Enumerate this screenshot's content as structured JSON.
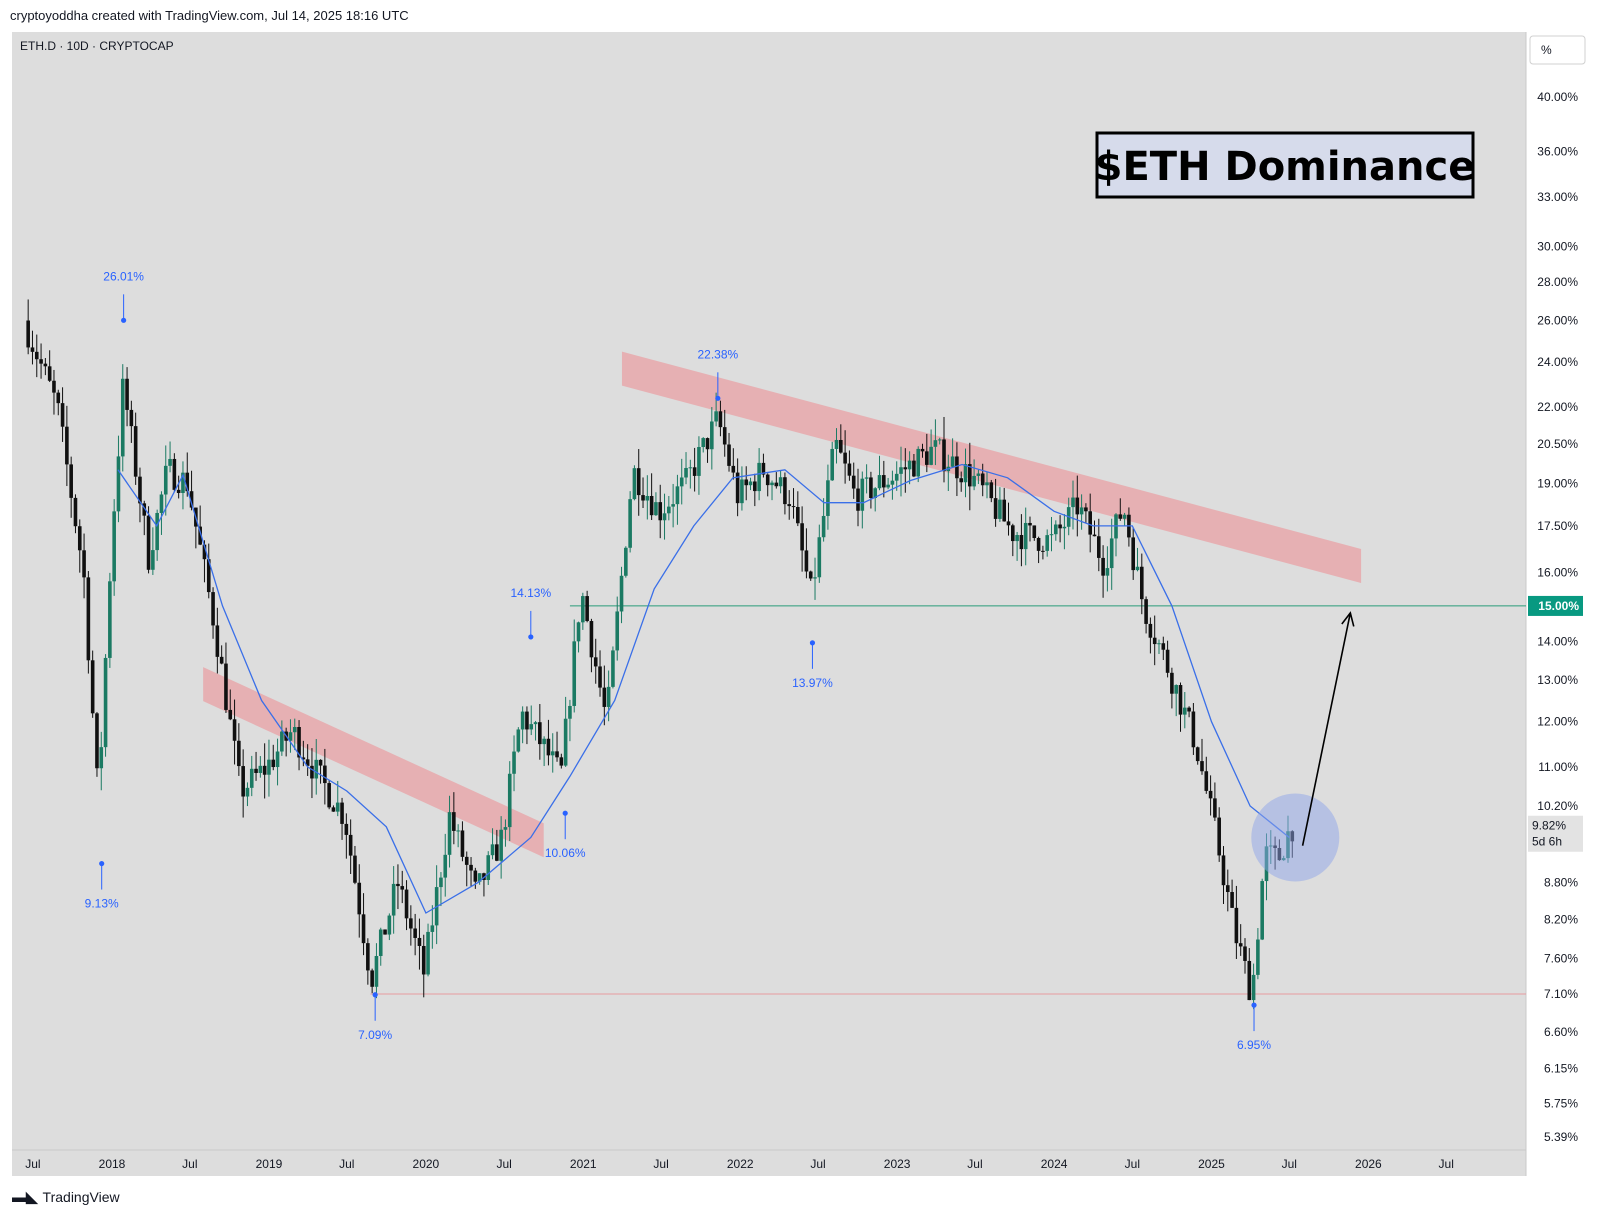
{
  "header": {
    "attribution": "cryptoyoddha created with TradingView.com, Jul 14, 2025 18:16 UTC"
  },
  "symbol_label": "ETH.D · 10D · CRYPTOCAP",
  "scale_button": "%",
  "footer": {
    "brand": "TradingView"
  },
  "colors": {
    "background": "#dddddd",
    "up_candle": "#1b7a63",
    "down_candle": "#101010",
    "ma_line": "#3a6fe8",
    "resistance_band": "#e8a8ac",
    "level_line_green": "#2a9d78",
    "level_line_red": "#e79aa0",
    "price_tag": "#089981",
    "annotation_text": "#2962ff"
  },
  "chart_data": {
    "type": "candlestick",
    "title": "$ETH Dominance",
    "symbol": "ETH.D",
    "interval": "10D",
    "exchange": "CRYPTOCAP",
    "y_scale": "log",
    "ylim": [
      5.25,
      43.5
    ],
    "y_ticks": [
      "40.00%",
      "36.00%",
      "33.00%",
      "30.00%",
      "28.00%",
      "26.00%",
      "24.00%",
      "22.00%",
      "20.50%",
      "19.00%",
      "17.50%",
      "16.00%",
      "14.00%",
      "13.00%",
      "12.00%",
      "11.00%",
      "10.20%",
      "8.80%",
      "8.20%",
      "7.60%",
      "7.10%",
      "6.60%",
      "6.15%",
      "5.75%",
      "5.39%"
    ],
    "x_ticks": [
      "Jul",
      "2018",
      "Jul",
      "2019",
      "Jul",
      "2020",
      "Jul",
      "2021",
      "Jul",
      "2022",
      "Jul",
      "2023",
      "Jul",
      "2024",
      "Jul",
      "2025",
      "Jul",
      "2026",
      "Jul"
    ],
    "last_price_label": "9.82%",
    "countdown_label": "5d 6h",
    "level_lines": [
      {
        "value": 15.0,
        "label": "15.00%",
        "color": "green"
      },
      {
        "value": 7.1,
        "color": "red"
      }
    ],
    "annotations": [
      {
        "label": "26.01%",
        "value": 26.01,
        "kind": "high"
      },
      {
        "label": "9.13%",
        "value": 9.13,
        "kind": "low"
      },
      {
        "label": "7.09%",
        "value": 7.09,
        "kind": "low"
      },
      {
        "label": "14.13%",
        "value": 14.13,
        "kind": "high"
      },
      {
        "label": "10.06%",
        "value": 10.06,
        "kind": "low"
      },
      {
        "label": "22.38%",
        "value": 22.38,
        "kind": "high"
      },
      {
        "label": "13.97%",
        "value": 13.97,
        "kind": "low"
      },
      {
        "label": "6.95%",
        "value": 6.95,
        "kind": "low"
      }
    ],
    "price_path": [
      {
        "date": "2017-06-15",
        "value": 26.0
      },
      {
        "date": "2017-09-01",
        "value": 22.0
      },
      {
        "date": "2017-11-01",
        "value": 16.0
      },
      {
        "date": "2017-12-05",
        "value": 10.3
      },
      {
        "date": "2018-01-05",
        "value": 17.0
      },
      {
        "date": "2018-02-01",
        "value": 23.0
      },
      {
        "date": "2018-04-01",
        "value": 16.5
      },
      {
        "date": "2018-05-15",
        "value": 19.5
      },
      {
        "date": "2018-07-01",
        "value": 19.0
      },
      {
        "date": "2018-09-01",
        "value": 14.5
      },
      {
        "date": "2018-11-01",
        "value": 10.5
      },
      {
        "date": "2019-01-01",
        "value": 11.0
      },
      {
        "date": "2019-03-01",
        "value": 11.8
      },
      {
        "date": "2019-05-01",
        "value": 10.8
      },
      {
        "date": "2019-07-01",
        "value": 10.0
      },
      {
        "date": "2019-09-01",
        "value": 7.3
      },
      {
        "date": "2019-11-01",
        "value": 8.8
      },
      {
        "date": "2020-01-01",
        "value": 7.4
      },
      {
        "date": "2020-03-01",
        "value": 10.0
      },
      {
        "date": "2020-05-01",
        "value": 8.6
      },
      {
        "date": "2020-07-01",
        "value": 9.6
      },
      {
        "date": "2020-08-15",
        "value": 12.2
      },
      {
        "date": "2020-10-01",
        "value": 11.5
      },
      {
        "date": "2020-11-15",
        "value": 10.8
      },
      {
        "date": "2021-01-01",
        "value": 15.5
      },
      {
        "date": "2021-03-01",
        "value": 12.0
      },
      {
        "date": "2021-05-01",
        "value": 19.5
      },
      {
        "date": "2021-07-01",
        "value": 18.0
      },
      {
        "date": "2021-09-01",
        "value": 19.0
      },
      {
        "date": "2021-11-15",
        "value": 21.5
      },
      {
        "date": "2022-01-01",
        "value": 18.5
      },
      {
        "date": "2022-03-01",
        "value": 19.5
      },
      {
        "date": "2022-05-01",
        "value": 18.5
      },
      {
        "date": "2022-06-20",
        "value": 15.3
      },
      {
        "date": "2022-08-15",
        "value": 20.5
      },
      {
        "date": "2022-10-01",
        "value": 18.5
      },
      {
        "date": "2023-01-01",
        "value": 19.3
      },
      {
        "date": "2023-04-01",
        "value": 20.3
      },
      {
        "date": "2023-07-01",
        "value": 19.2
      },
      {
        "date": "2023-10-01",
        "value": 17.3
      },
      {
        "date": "2024-01-01",
        "value": 17.0
      },
      {
        "date": "2024-03-01",
        "value": 18.2
      },
      {
        "date": "2024-05-01",
        "value": 16.3
      },
      {
        "date": "2024-06-15",
        "value": 18.2
      },
      {
        "date": "2024-08-01",
        "value": 15.0
      },
      {
        "date": "2024-10-01",
        "value": 13.2
      },
      {
        "date": "2024-12-01",
        "value": 11.5
      },
      {
        "date": "2025-01-20",
        "value": 9.5
      },
      {
        "date": "2025-03-01",
        "value": 8.0
      },
      {
        "date": "2025-04-10",
        "value": 7.1
      },
      {
        "date": "2025-05-10",
        "value": 9.3
      },
      {
        "date": "2025-06-10",
        "value": 9.2
      },
      {
        "date": "2025-07-10",
        "value": 9.82
      }
    ],
    "moving_average": [
      {
        "date": "2018-01-15",
        "value": 19.5
      },
      {
        "date": "2018-04-15",
        "value": 17.5
      },
      {
        "date": "2018-06-15",
        "value": 19.3
      },
      {
        "date": "2018-09-15",
        "value": 15.0
      },
      {
        "date": "2018-12-15",
        "value": 12.5
      },
      {
        "date": "2019-04-01",
        "value": 11.0
      },
      {
        "date": "2019-07-01",
        "value": 10.5
      },
      {
        "date": "2019-10-01",
        "value": 9.8
      },
      {
        "date": "2020-01-01",
        "value": 8.3
      },
      {
        "date": "2020-05-01",
        "value": 8.8
      },
      {
        "date": "2020-09-01",
        "value": 9.6
      },
      {
        "date": "2020-12-01",
        "value": 10.8
      },
      {
        "date": "2021-03-15",
        "value": 12.5
      },
      {
        "date": "2021-06-15",
        "value": 15.5
      },
      {
        "date": "2021-09-15",
        "value": 17.5
      },
      {
        "date": "2021-12-15",
        "value": 19.2
      },
      {
        "date": "2022-04-15",
        "value": 19.5
      },
      {
        "date": "2022-07-15",
        "value": 18.3
      },
      {
        "date": "2022-10-15",
        "value": 18.3
      },
      {
        "date": "2023-02-01",
        "value": 19.1
      },
      {
        "date": "2023-06-01",
        "value": 19.7
      },
      {
        "date": "2023-09-15",
        "value": 19.2
      },
      {
        "date": "2024-01-01",
        "value": 18.0
      },
      {
        "date": "2024-04-01",
        "value": 17.5
      },
      {
        "date": "2024-07-01",
        "value": 17.5
      },
      {
        "date": "2024-10-01",
        "value": 15.0
      },
      {
        "date": "2025-01-01",
        "value": 12.0
      },
      {
        "date": "2025-04-01",
        "value": 10.2
      },
      {
        "date": "2025-07-01",
        "value": 9.6
      }
    ],
    "resistance_bands": [
      {
        "from": {
          "date": "2018-08-01",
          "value": 12.9
        },
        "to": {
          "date": "2020-10-01",
          "value": 9.55
        }
      },
      {
        "from": {
          "date": "2021-04-01",
          "value": 23.7
        },
        "to": {
          "date": "2025-12-15",
          "value": 16.2
        }
      }
    ],
    "projection_arrow": {
      "from": {
        "date": "2025-08-01",
        "value": 9.45
      },
      "to": {
        "date": "2025-11-20",
        "value": 14.8
      }
    },
    "highlight_circle": {
      "date": "2025-07-15",
      "value": 9.6
    }
  }
}
